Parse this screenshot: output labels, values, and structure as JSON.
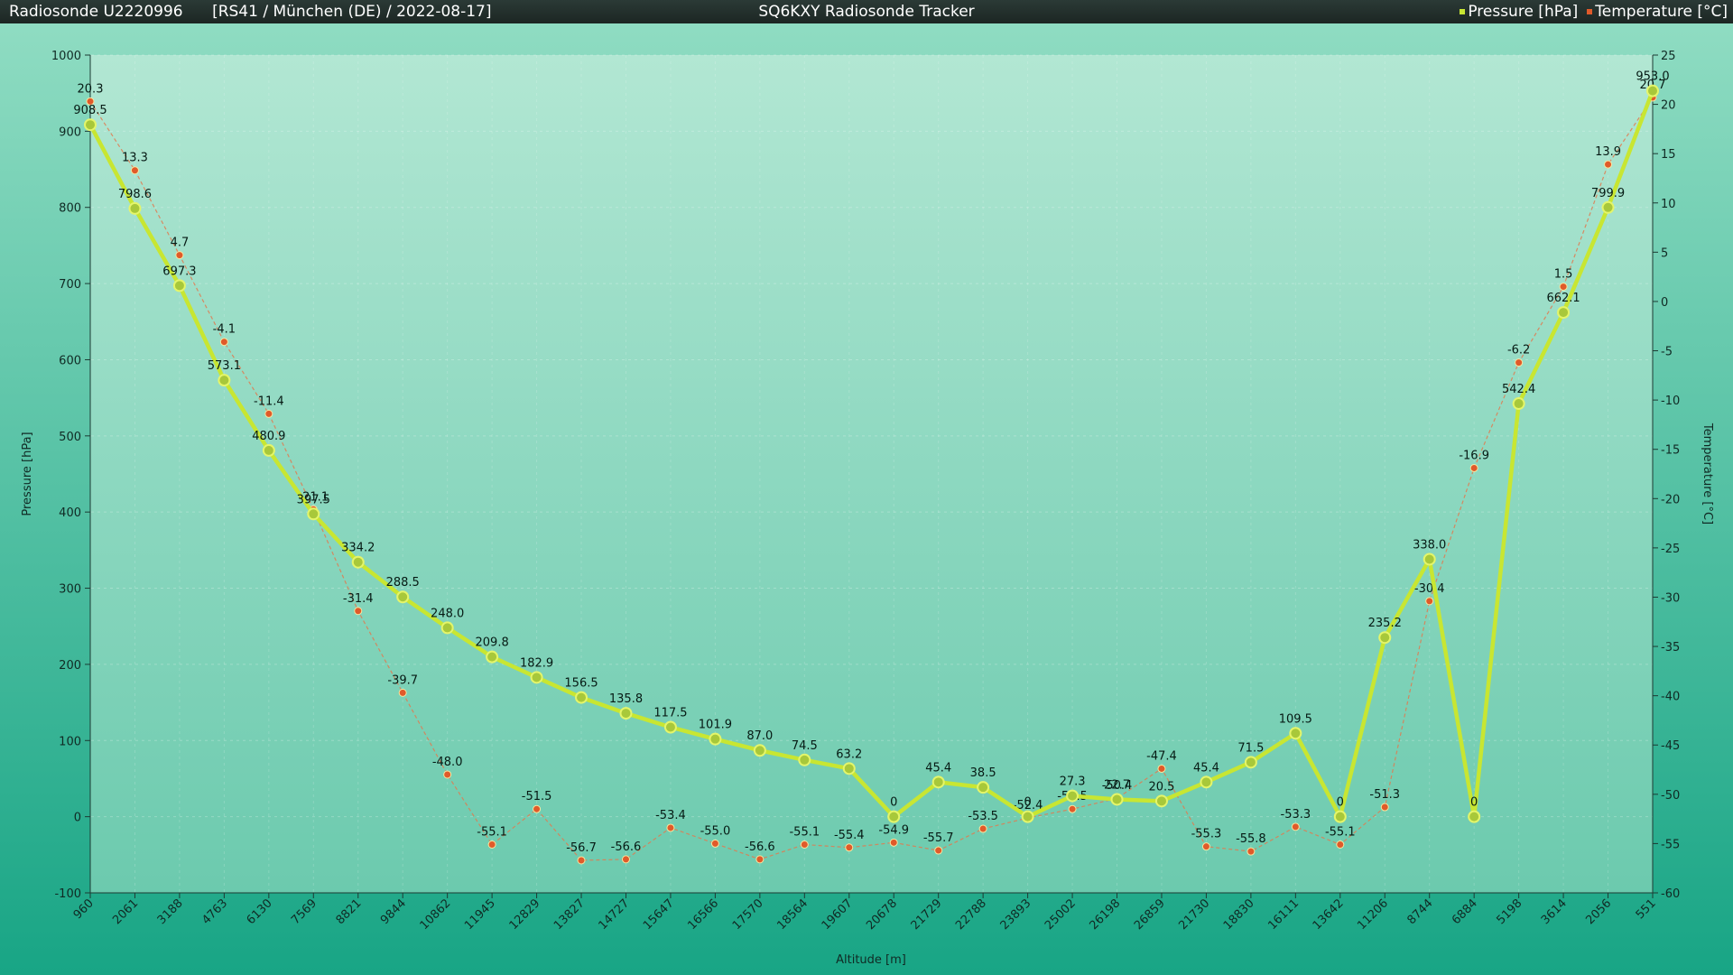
{
  "header": {
    "sonde": "Radiosonde U2220996",
    "info": "[RS41 / München (DE) / 2022-08-17]",
    "app_title": "SQ6KXY Radiosonde Tracker",
    "legend": [
      {
        "label": "Pressure [hPa]",
        "color": "#c8e632"
      },
      {
        "label": "Temperature [°C]",
        "color": "#e05a2a"
      }
    ]
  },
  "chart_data": {
    "type": "line",
    "xlabel": "Altitude [m]",
    "ylabel": "Pressure [hPa]",
    "y2label": "Temperature [°C]",
    "ylim": [
      -100,
      1000
    ],
    "y2lim": [
      -60,
      25
    ],
    "yticks": [
      -100,
      0,
      100,
      200,
      300,
      400,
      500,
      600,
      700,
      800,
      900,
      1000
    ],
    "y2ticks": [
      -60,
      -55,
      -50,
      -45,
      -40,
      -35,
      -30,
      -25,
      -20,
      -15,
      -10,
      -5,
      0,
      5,
      10,
      15,
      20,
      25
    ],
    "categories": [
      "960",
      "2061",
      "3188",
      "4763",
      "6130",
      "7569",
      "8821",
      "9844",
      "10862",
      "11945",
      "12829",
      "13827",
      "14727",
      "15647",
      "16566",
      "17570",
      "18564",
      "19607",
      "20678",
      "21729",
      "22788",
      "23893",
      "25002",
      "26198",
      "26859",
      "21730",
      "18830",
      "16111",
      "13642",
      "11206",
      "8744",
      "6884",
      "5198",
      "3614",
      "2056",
      "551"
    ],
    "series": [
      {
        "name": "Pressure [hPa]",
        "color": "#c8e632",
        "values": [
          908.5,
          798.6,
          697.3,
          573.1,
          480.9,
          397.5,
          334.2,
          288.5,
          248.0,
          209.8,
          182.9,
          156.5,
          135.8,
          117.5,
          101.9,
          87.0,
          74.5,
          63.2,
          0,
          45.4,
          38.5,
          0,
          27.3,
          22.7,
          20.5,
          45.4,
          71.5,
          109.5,
          0,
          235.2,
          338.0,
          0,
          542.4,
          662.1,
          799.9,
          953.0
        ],
        "labels": [
          "908.5",
          "798.6",
          "697.3",
          "573.1",
          "480.9",
          "397.5",
          "334.2",
          "288.5",
          "248.0",
          "209.8",
          "182.9",
          "156.5",
          "135.8",
          "117.5",
          "101.9",
          "87.0",
          "74.5",
          "63.2",
          "0",
          "45.4",
          "38.5",
          "0",
          "27.3",
          "22.7",
          "20.5",
          "45.4",
          "71.5",
          "109.5",
          "0",
          "235.2",
          "338.0",
          "0",
          "542.4",
          "662.1",
          "799.9",
          "953.0"
        ]
      },
      {
        "name": "Temperature [°C]",
        "color": "#e05a2a",
        "values": [
          20.3,
          13.3,
          4.7,
          -4.1,
          -11.4,
          -21.1,
          -31.4,
          -39.7,
          -48.0,
          -55.1,
          -51.5,
          -56.7,
          -56.6,
          -53.4,
          -55.0,
          -56.6,
          -55.1,
          -55.4,
          -54.9,
          -55.7,
          -53.5,
          -52.4,
          -51.5,
          -50.4,
          -47.4,
          -55.3,
          -55.8,
          -53.3,
          -55.1,
          -51.3,
          -30.4,
          -16.9,
          -6.2,
          1.5,
          13.9,
          20.7
        ],
        "labels": [
          "20.3",
          "13.3",
          "4.7",
          "-4.1",
          "-11.4",
          "-21.1",
          "-31.4",
          "-39.7",
          "-48.0",
          "-55.1",
          "-51.5",
          "-56.7",
          "-56.6",
          "-53.4",
          "-55.0",
          "-56.6",
          "-55.1",
          "-55.4",
          "-54.9",
          "-55.7",
          "-53.5",
          "-52.4",
          "-51.5",
          "-50.4",
          "-47.4",
          "-55.3",
          "-55.8",
          "-53.3",
          "-55.1",
          "-51.3",
          "-30.4",
          "-16.9",
          "-6.2",
          "1.5",
          "13.9",
          "20.7"
        ]
      }
    ]
  }
}
